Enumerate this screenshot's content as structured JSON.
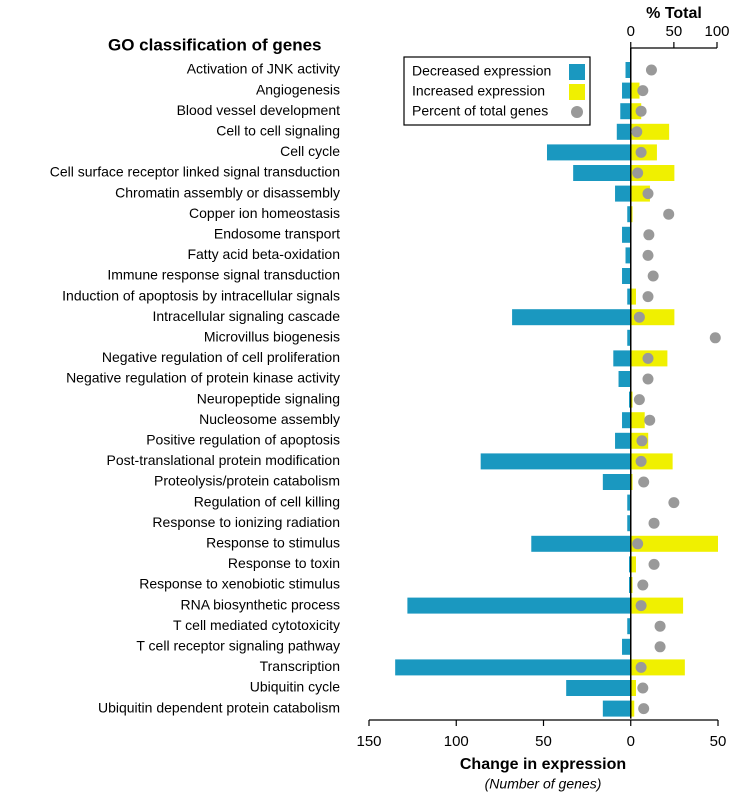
{
  "chart_data": {
    "type": "bar",
    "orientation": "horizontal",
    "title": "GO classification of genes",
    "xlabel": "Change in expression",
    "xlabel_note": "(Number of genes)",
    "x2label": "% Total",
    "categories": [
      "Activation of JNK activity",
      "Angiogenesis",
      "Blood vessel development",
      "Cell to cell signaling",
      "Cell cycle",
      "Cell surface receptor linked signal transduction",
      "Chromatin assembly or disassembly",
      "Copper ion homeostasis",
      "Endosome transport",
      "Fatty acid beta-oxidation",
      "Immune response signal transduction",
      "Induction of apoptosis by intracellular signals",
      "Intracellular signaling cascade",
      "Microvillus biogenesis",
      "Negative regulation of cell proliferation",
      "Negative regulation of protein kinase activity",
      "Neuropeptide signaling",
      "Nucleosome assembly",
      "Positive regulation of apoptosis",
      "Post-translational protein modification",
      "Proteolysis/protein catabolism",
      "Regulation of cell killing",
      "Response to ionizing radiation",
      "Response to stimulus",
      "Response to toxin",
      "Response to xenobiotic stimulus",
      "RNA biosynthetic process",
      "T cell mediated cytotoxicity",
      "T cell receptor signaling pathway",
      "Transcription",
      "Ubiquitin cycle",
      "Ubiquitin dependent protein catabolism"
    ],
    "series": [
      {
        "name": "Decreased expression",
        "color": "#1a98c0",
        "values": [
          -3,
          -5,
          -6,
          -8,
          -48,
          -33,
          -9,
          -2,
          -5,
          -3,
          -5,
          -2,
          -68,
          -2,
          -10,
          -7,
          -1,
          -5,
          -9,
          -86,
          -16,
          -2,
          -2,
          -57,
          -1,
          -1,
          -128,
          -2,
          -5,
          -135,
          -37,
          -16
        ]
      },
      {
        "name": "Increased expression",
        "color": "#f0f000",
        "values": [
          0,
          5,
          6,
          22,
          15,
          25,
          11,
          1,
          0,
          0,
          0,
          3,
          25,
          0,
          21,
          0,
          1,
          8,
          10,
          24,
          1,
          0,
          0,
          50,
          3,
          1,
          30,
          0,
          0,
          31,
          3,
          2
        ]
      },
      {
        "name": "Percent of total genes",
        "color": "#999999",
        "axis": "x2",
        "marker": "circle",
        "values": [
          24,
          14,
          12,
          7,
          12,
          8,
          20,
          44,
          21,
          20,
          26,
          20,
          10,
          98,
          20,
          20,
          10,
          22,
          13,
          12,
          15,
          50,
          27,
          8,
          27,
          14,
          12,
          34,
          34,
          12,
          14,
          15
        ]
      }
    ],
    "xlim": [
      -150,
      50
    ],
    "xticks": [
      {
        "value": -150,
        "label": "150"
      },
      {
        "value": -100,
        "label": "100"
      },
      {
        "value": -50,
        "label": "50"
      },
      0,
      50
    ],
    "x2lim": [
      0,
      100
    ],
    "x2ticks": [
      0,
      50,
      100
    ],
    "legend": "top-right"
  }
}
